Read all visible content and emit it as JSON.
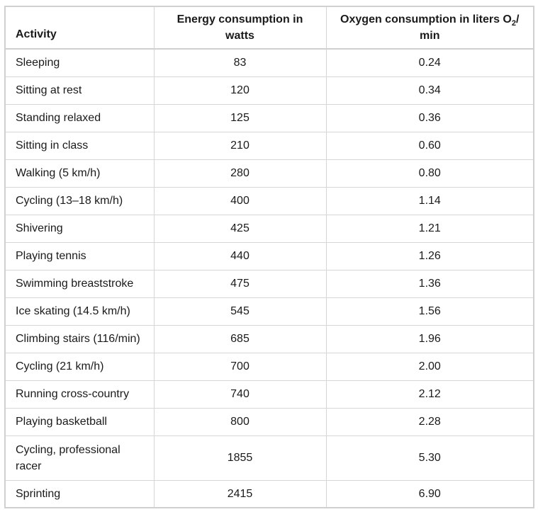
{
  "table": {
    "headers": {
      "activity": "Activity",
      "energy": "Energy consumption in watts",
      "oxygen_prefix": "Oxygen consumption in liters O",
      "oxygen_sub": "2",
      "oxygen_suffix": "/ min"
    },
    "rows": [
      {
        "activity": "Sleeping",
        "energy": "83",
        "oxygen": "0.24"
      },
      {
        "activity": "Sitting at rest",
        "energy": "120",
        "oxygen": "0.34"
      },
      {
        "activity": "Standing relaxed",
        "energy": "125",
        "oxygen": "0.36"
      },
      {
        "activity": "Sitting in class",
        "energy": "210",
        "oxygen": "0.60"
      },
      {
        "activity": "Walking (5 km/h)",
        "energy": "280",
        "oxygen": "0.80"
      },
      {
        "activity": "Cycling (13–18 km/h)",
        "energy": "400",
        "oxygen": "1.14"
      },
      {
        "activity": "Shivering",
        "energy": "425",
        "oxygen": "1.21"
      },
      {
        "activity": "Playing tennis",
        "energy": "440",
        "oxygen": "1.26"
      },
      {
        "activity": "Swimming breaststroke",
        "energy": "475",
        "oxygen": "1.36"
      },
      {
        "activity": "Ice skating (14.5 km/h)",
        "energy": "545",
        "oxygen": "1.56"
      },
      {
        "activity": "Climbing stairs (116/min)",
        "energy": "685",
        "oxygen": "1.96"
      },
      {
        "activity": "Cycling (21 km/h)",
        "energy": "700",
        "oxygen": "2.00"
      },
      {
        "activity": "Running cross-country",
        "energy": "740",
        "oxygen": "2.12"
      },
      {
        "activity": "Playing basketball",
        "energy": "800",
        "oxygen": "2.28"
      },
      {
        "activity": "Cycling, professional racer",
        "energy": "1855",
        "oxygen": "5.30"
      },
      {
        "activity": "Sprinting",
        "energy": "2415",
        "oxygen": "6.90"
      }
    ]
  }
}
